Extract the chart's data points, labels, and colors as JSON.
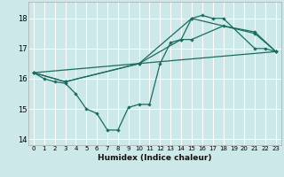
{
  "xlabel": "Humidex (Indice chaleur)",
  "xlim": [
    -0.5,
    23.5
  ],
  "ylim": [
    13.8,
    18.55
  ],
  "yticks": [
    14,
    15,
    16,
    17,
    18
  ],
  "xticks": [
    0,
    1,
    2,
    3,
    4,
    5,
    6,
    7,
    8,
    9,
    10,
    11,
    12,
    13,
    14,
    15,
    16,
    17,
    18,
    19,
    20,
    21,
    22,
    23
  ],
  "bg_color": "#cce8e8",
  "grid_color": "#b0d8d8",
  "line_color": "#1a6b60",
  "lines": [
    {
      "x": [
        0,
        1,
        2,
        3,
        4,
        5,
        6,
        7,
        8,
        9,
        10,
        11,
        12,
        13,
        14,
        15,
        16,
        17,
        18,
        21,
        22,
        23
      ],
      "y": [
        16.2,
        16.0,
        15.9,
        15.85,
        15.5,
        15.0,
        14.85,
        14.3,
        14.3,
        15.05,
        15.15,
        15.15,
        16.5,
        17.2,
        17.3,
        18.0,
        18.1,
        18.0,
        18.0,
        17.0,
        17.0,
        16.9
      ],
      "marker": true
    },
    {
      "x": [
        0,
        3,
        10,
        15,
        21,
        23
      ],
      "y": [
        16.2,
        15.9,
        16.5,
        18.0,
        17.5,
        16.9
      ],
      "marker": true
    },
    {
      "x": [
        0,
        23
      ],
      "y": [
        16.2,
        16.9
      ],
      "marker": false
    },
    {
      "x": [
        0,
        3,
        10,
        14,
        15,
        18,
        21,
        23
      ],
      "y": [
        16.2,
        15.9,
        16.5,
        17.3,
        17.3,
        17.75,
        17.55,
        16.9
      ],
      "marker": true
    }
  ]
}
